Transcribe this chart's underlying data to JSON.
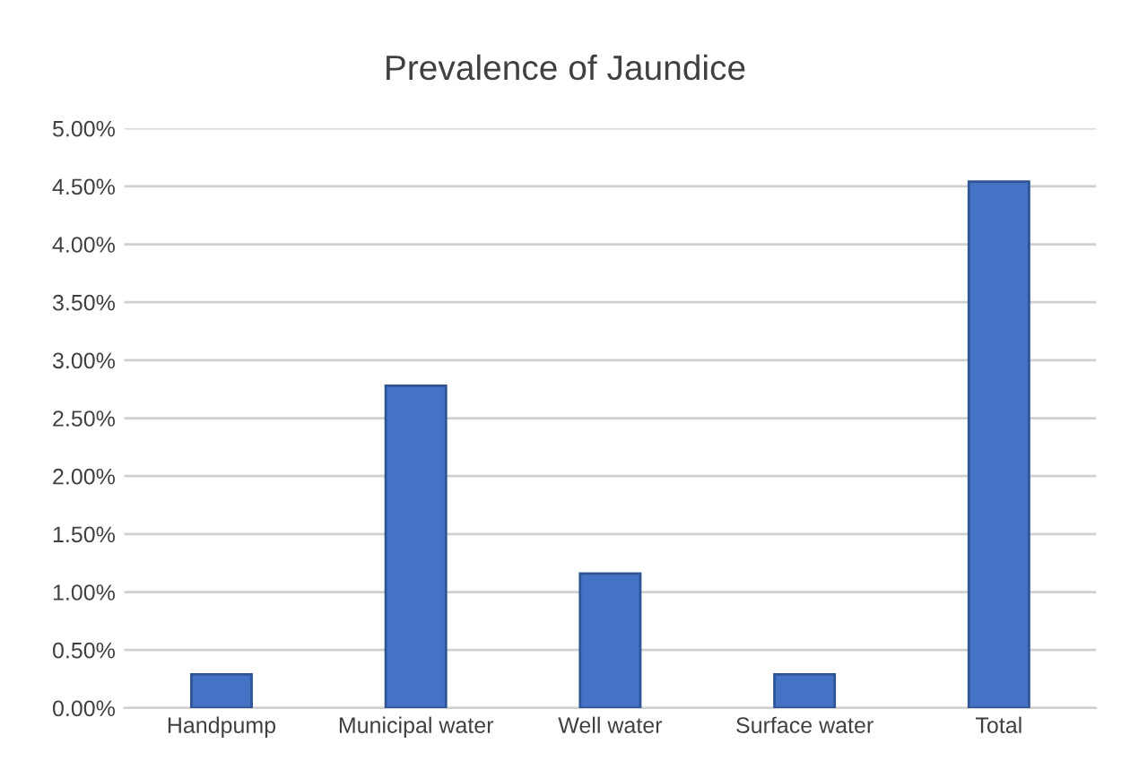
{
  "chart_data": {
    "type": "bar",
    "title": "Prevalence of Jaundice",
    "categories": [
      "Handpump",
      "Municipal water",
      "Well water",
      "Surface water",
      "Total"
    ],
    "values": [
      0.29,
      2.78,
      1.16,
      0.29,
      4.54
    ],
    "color": "#4472c4",
    "ylim": [
      0,
      5
    ],
    "yticks": [
      {
        "value": 0,
        "label": "0.00%"
      },
      {
        "value": 0.5,
        "label": "0.50%"
      },
      {
        "value": 1,
        "label": "1.00%"
      },
      {
        "value": 1.5,
        "label": "1.50%"
      },
      {
        "value": 2,
        "label": "2.00%"
      },
      {
        "value": 2.5,
        "label": "2.50%"
      },
      {
        "value": 3,
        "label": "3.00%"
      },
      {
        "value": 3.5,
        "label": "3.50%"
      },
      {
        "value": 4,
        "label": "4.00%"
      },
      {
        "value": 4.5,
        "label": "4.50%"
      },
      {
        "value": 5,
        "label": "5.00%"
      }
    ],
    "grid": "y"
  }
}
